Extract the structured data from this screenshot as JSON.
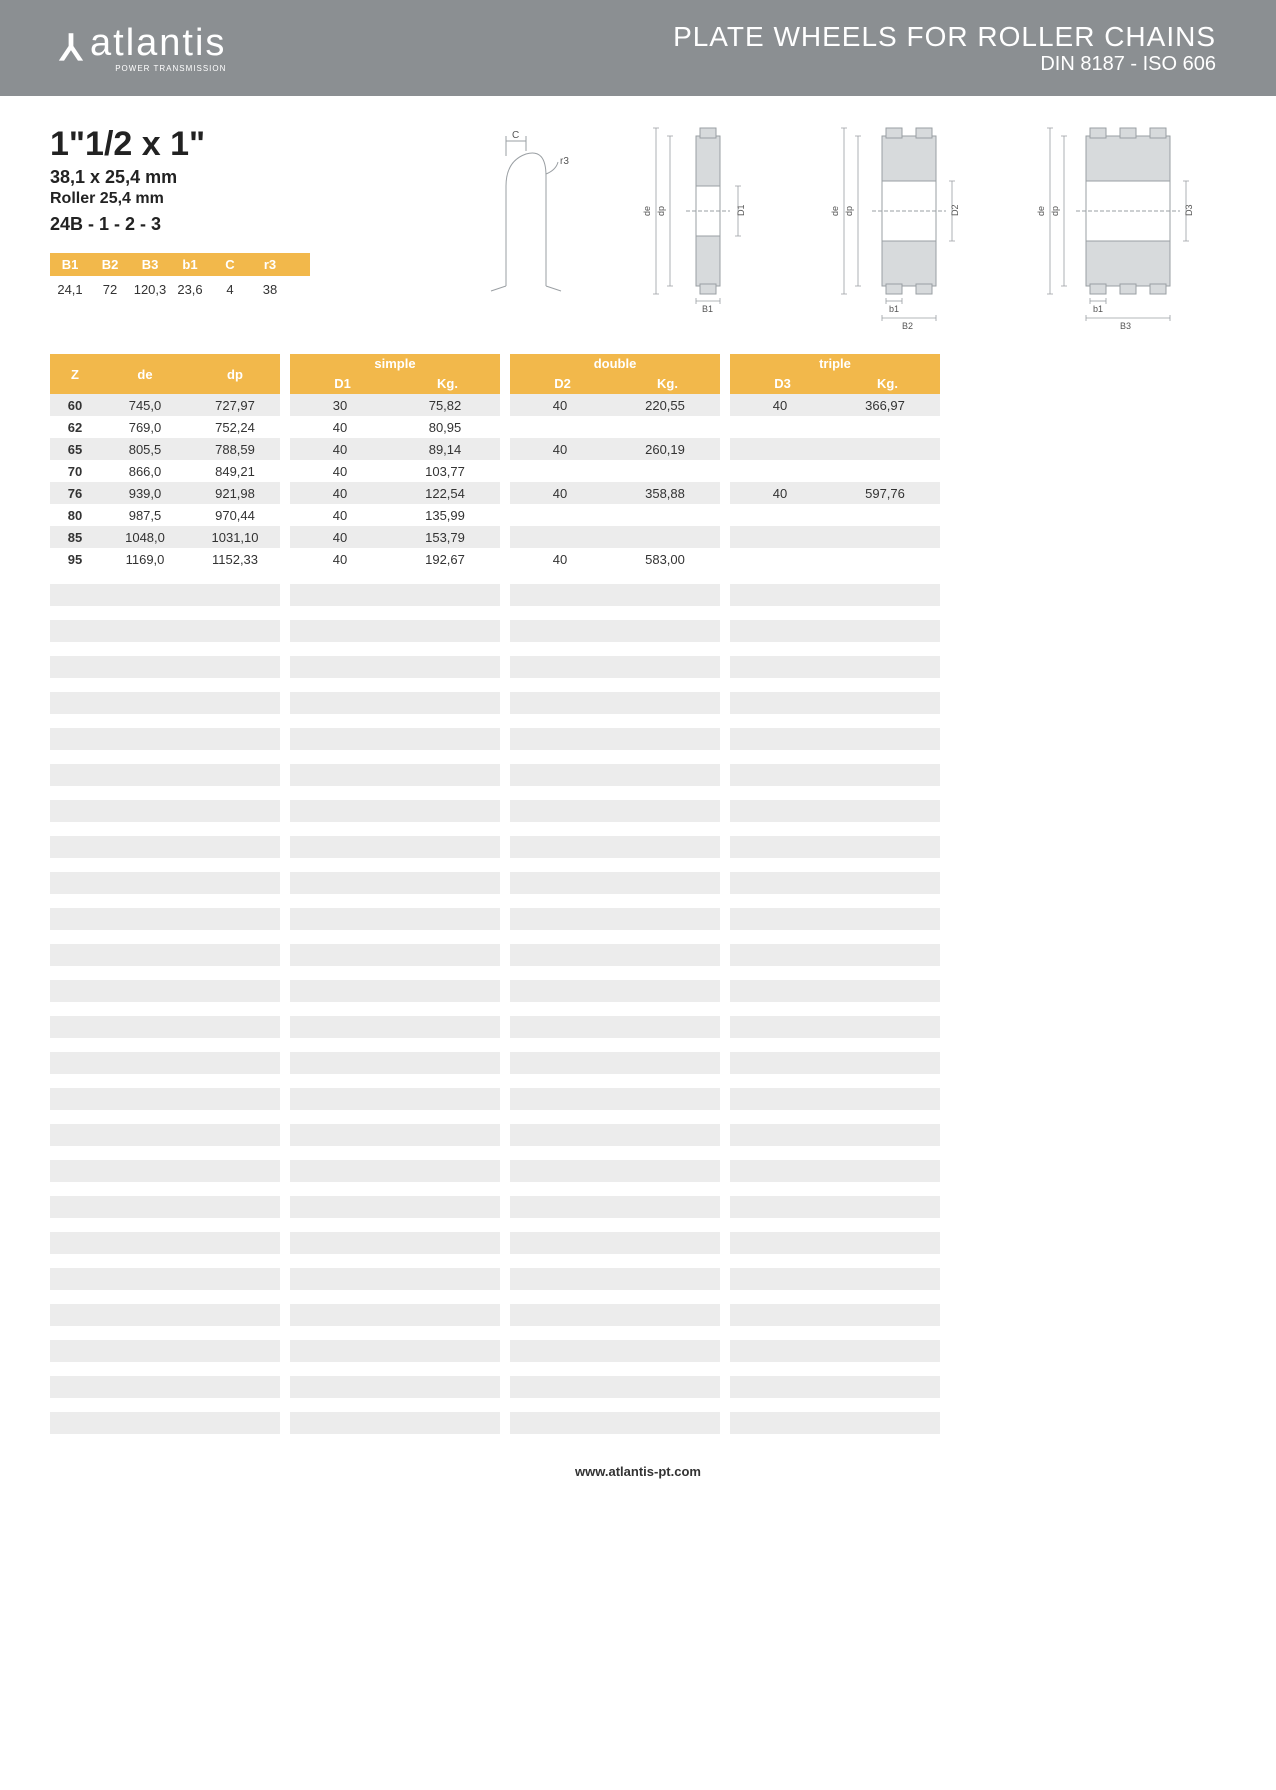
{
  "banner": {
    "logo_name": "atlantis",
    "logo_sub": "POWER TRANSMISSION",
    "title": "PLATE WHEELS FOR ROLLER CHAINS",
    "subtitle": "DIN 8187 - ISO 606"
  },
  "spec": {
    "size": "1\"1/2 x 1\"",
    "mm": "38,1 x 25,4 mm",
    "roller": "Roller 25,4 mm",
    "code": "24B - 1 - 2 - 3"
  },
  "dims": {
    "headers": [
      "B1",
      "B2",
      "B3",
      "b1",
      "C",
      "r3"
    ],
    "values": [
      "24,1",
      "72",
      "120,3",
      "23,6",
      "4",
      "38"
    ]
  },
  "diagram_labels": {
    "c": "C",
    "r3": "r3",
    "de": "de",
    "dp": "dp",
    "d1": "D1",
    "d2": "D2",
    "d3": "D3",
    "b1": "B1",
    "b1l": "b1",
    "b2": "B2",
    "b3": "B3"
  },
  "table": {
    "zde_headers": [
      "Z",
      "de",
      "dp"
    ],
    "groups": [
      {
        "title": "simple",
        "sub": [
          "D1",
          "Kg."
        ]
      },
      {
        "title": "double",
        "sub": [
          "D2",
          "Kg."
        ]
      },
      {
        "title": "triple",
        "sub": [
          "D3",
          "Kg."
        ]
      }
    ],
    "rows": [
      {
        "z": "60",
        "de": "745,0",
        "dp": "727,97",
        "s": [
          "30",
          "75,82"
        ],
        "d": [
          "40",
          "220,55"
        ],
        "t": [
          "40",
          "366,97"
        ]
      },
      {
        "z": "62",
        "de": "769,0",
        "dp": "752,24",
        "s": [
          "40",
          "80,95"
        ],
        "d": [
          "",
          ""
        ],
        "t": [
          "",
          ""
        ]
      },
      {
        "z": "65",
        "de": "805,5",
        "dp": "788,59",
        "s": [
          "40",
          "89,14"
        ],
        "d": [
          "40",
          "260,19"
        ],
        "t": [
          "",
          ""
        ]
      },
      {
        "z": "70",
        "de": "866,0",
        "dp": "849,21",
        "s": [
          "40",
          "103,77"
        ],
        "d": [
          "",
          ""
        ],
        "t": [
          "",
          ""
        ]
      },
      {
        "z": "76",
        "de": "939,0",
        "dp": "921,98",
        "s": [
          "40",
          "122,54"
        ],
        "d": [
          "40",
          "358,88"
        ],
        "t": [
          "40",
          "597,76"
        ]
      },
      {
        "z": "80",
        "de": "987,5",
        "dp": "970,44",
        "s": [
          "40",
          "135,99"
        ],
        "d": [
          "",
          ""
        ],
        "t": [
          "",
          ""
        ]
      },
      {
        "z": "85",
        "de": "1048,0",
        "dp": "1031,10",
        "s": [
          "40",
          "153,79"
        ],
        "d": [
          "",
          ""
        ],
        "t": [
          "",
          ""
        ]
      },
      {
        "z": "95",
        "de": "1169,0",
        "dp": "1152,33",
        "s": [
          "40",
          "192,67"
        ],
        "d": [
          "40",
          "583,00"
        ],
        "t": [
          "",
          ""
        ]
      }
    ],
    "empty_row_count": 24
  },
  "colors": {
    "banner_bg": "#8b8f92",
    "accent": "#f2b84b",
    "stripe": "#ececec",
    "diagram_stroke": "#9a9fa3",
    "diagram_fill": "#d7dadc"
  },
  "footer": "www.atlantis-pt.com"
}
